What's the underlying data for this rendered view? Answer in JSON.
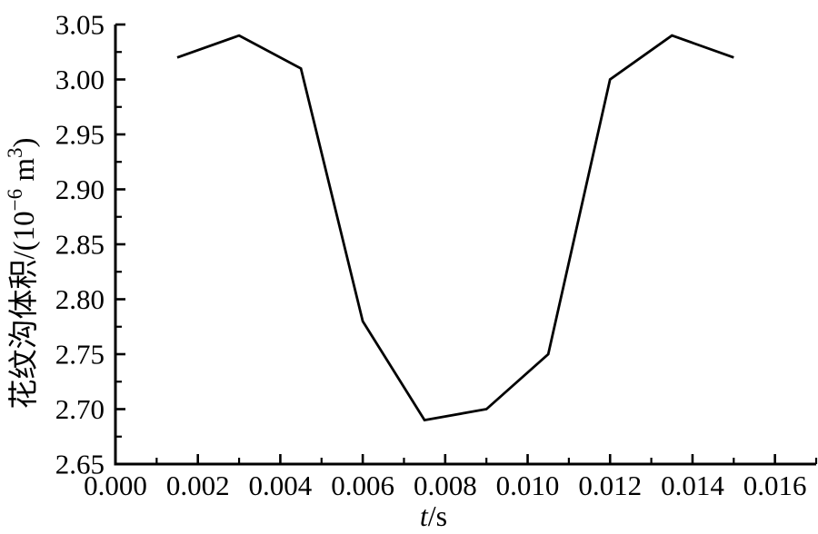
{
  "figure": {
    "background": "#ffffff",
    "axis_color": "#000000",
    "line_color": "#000000"
  },
  "labels": {
    "xlabel_italic": "t",
    "xlabel_rest": "/s",
    "ylabel_main": "花纹沟体积/(10",
    "ylabel_sup": "−6",
    "ylabel_mid": " m",
    "ylabel_sup2": "3",
    "ylabel_end": ")"
  },
  "chart_data": {
    "type": "line",
    "title": "",
    "xlabel": "t/s",
    "ylabel": "花纹沟体积/(10⁻⁶ m³)",
    "x": [
      0.0015,
      0.003,
      0.0045,
      0.006,
      0.0075,
      0.009,
      0.0105,
      0.012,
      0.0135,
      0.015
    ],
    "y": [
      3.02,
      3.04,
      3.01,
      2.78,
      2.69,
      2.7,
      2.75,
      3.0,
      3.04,
      3.02
    ],
    "xlim": [
      0,
      0.017
    ],
    "ylim": [
      2.65,
      3.05
    ],
    "x_major_ticks": [
      0,
      0.002,
      0.004,
      0.006,
      0.008,
      0.01,
      0.012,
      0.014,
      0.016
    ],
    "x_tick_labels": [
      "0.000",
      "0.002",
      "0.004",
      "0.006",
      "0.008",
      "0.010",
      "0.012",
      "0.014",
      "0.016"
    ],
    "x_minor_ticks": [
      0.001,
      0.003,
      0.005,
      0.007,
      0.009,
      0.011,
      0.013,
      0.015,
      0.017
    ],
    "y_major_ticks": [
      2.65,
      2.7,
      2.75,
      2.8,
      2.85,
      2.9,
      2.95,
      3.0,
      3.05
    ],
    "y_tick_labels": [
      "2.65",
      "2.70",
      "2.75",
      "2.80",
      "2.85",
      "2.90",
      "2.95",
      "3.00",
      "3.05"
    ],
    "y_minor_ticks": [
      2.675,
      2.725,
      2.775,
      2.825,
      2.875,
      2.925,
      2.975,
      3.025
    ],
    "grid": false,
    "legend": null,
    "line_style": "solid",
    "markers": "none"
  }
}
